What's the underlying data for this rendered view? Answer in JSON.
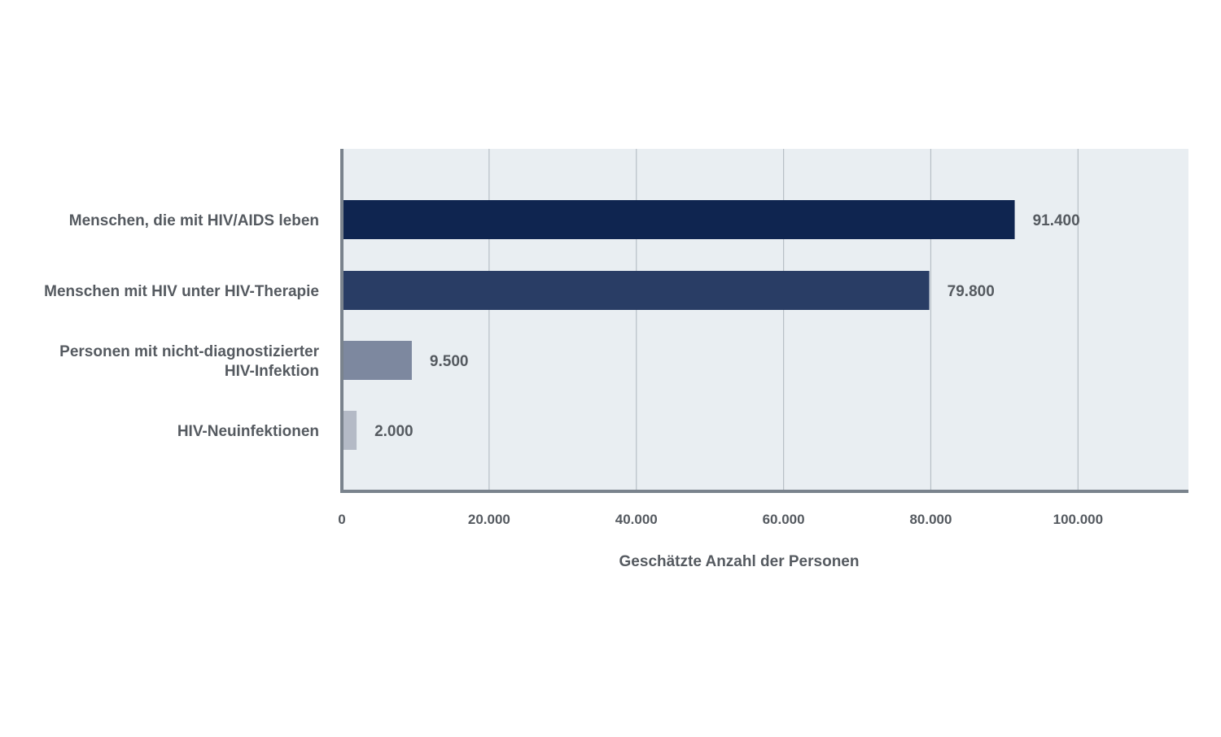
{
  "chart_data": {
    "type": "bar",
    "orientation": "horizontal",
    "categories": [
      [
        "Menschen, die mit HIV/AIDS leben"
      ],
      [
        "Menschen mit HIV unter HIV-Therapie"
      ],
      [
        "Personen mit nicht-diagnostizierter",
        "HIV-Infektion"
      ],
      [
        "HIV-Neuinfektionen"
      ]
    ],
    "values": [
      91400,
      79800,
      9500,
      2000
    ],
    "value_labels": [
      "91.400",
      "79.800",
      "9.500",
      "2.000"
    ],
    "colors": [
      "#0f2550",
      "#293d65",
      "#7d889f",
      "#b4bac6"
    ],
    "xlabel": "Geschätzte Anzahl der Personen",
    "xticks": [
      0,
      20000,
      40000,
      60000,
      80000,
      100000
    ],
    "xtick_labels": [
      "0",
      "20.000",
      "40.000",
      "60.000",
      "80.000",
      "100.000"
    ],
    "xlim": [
      0,
      115000
    ],
    "grid": true,
    "plot_background": "#e9eef2",
    "axis_color": "#7a838d",
    "grid_color": "#b7bfc6",
    "text_color": "#555a60"
  }
}
